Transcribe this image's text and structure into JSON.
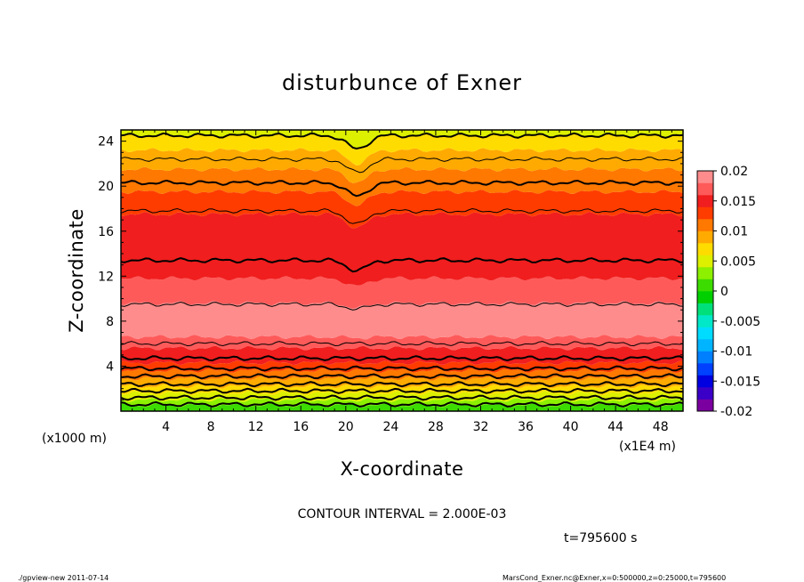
{
  "chart_data": {
    "type": "heatmap",
    "title": "disturbunce of Exner",
    "xlabel": "X-coordinate",
    "ylabel": "Z-coordinate",
    "x_unit_label": "(x1E4 m)",
    "y_unit_label": "(x1000 m)",
    "xlim": [
      0,
      50
    ],
    "ylim": [
      0,
      25
    ],
    "x_ticks": [
      4,
      8,
      12,
      16,
      20,
      24,
      28,
      32,
      36,
      40,
      44,
      48
    ],
    "y_ticks": [
      4,
      8,
      12,
      16,
      20,
      24
    ],
    "colorbar": {
      "ticks": [
        "0.02",
        "0.015",
        "0.01",
        "0.005",
        "0",
        "-0.005",
        "-0.01",
        "-0.015",
        "-0.02"
      ],
      "range": [
        -0.02,
        0.02
      ],
      "levels": [
        {
          "value": -0.019,
          "color": "#7b00a0"
        },
        {
          "value": -0.017,
          "color": "#3a00c8"
        },
        {
          "value": -0.015,
          "color": "#0000e0"
        },
        {
          "value": -0.013,
          "color": "#0040ff"
        },
        {
          "value": -0.011,
          "color": "#0080ff"
        },
        {
          "value": -0.009,
          "color": "#00b4ff"
        },
        {
          "value": -0.007,
          "color": "#00dcff"
        },
        {
          "value": -0.005,
          "color": "#00e8c8"
        },
        {
          "value": -0.003,
          "color": "#00e07a"
        },
        {
          "value": -0.001,
          "color": "#00d000"
        },
        {
          "value": 0.001,
          "color": "#3cdc00"
        },
        {
          "value": 0.003,
          "color": "#8cf000"
        },
        {
          "value": 0.005,
          "color": "#dcf000"
        },
        {
          "value": 0.007,
          "color": "#ffdc00"
        },
        {
          "value": 0.009,
          "color": "#ffaa00"
        },
        {
          "value": 0.011,
          "color": "#ff7800"
        },
        {
          "value": 0.013,
          "color": "#ff3c00"
        },
        {
          "value": 0.015,
          "color": "#f01e1e"
        },
        {
          "value": 0.017,
          "color": "#ff5a5a"
        },
        {
          "value": 0.019,
          "color": "#ff8c8c"
        }
      ]
    },
    "bands": [
      {
        "z": [
          0,
          0.5
        ],
        "value": 0.001
      },
      {
        "z": [
          0.5,
          1.0
        ],
        "value": 0.003
      },
      {
        "z": [
          1.0,
          1.6
        ],
        "value": 0.005
      },
      {
        "z": [
          1.6,
          2.2
        ],
        "value": 0.007
      },
      {
        "z": [
          2.2,
          2.9
        ],
        "value": 0.009
      },
      {
        "z": [
          2.9,
          3.6
        ],
        "value": 0.011
      },
      {
        "z": [
          3.6,
          4.3
        ],
        "value": 0.013
      },
      {
        "z": [
          4.3,
          5.6
        ],
        "value": 0.015
      },
      {
        "z": [
          5.6,
          6.6
        ],
        "value": 0.017
      },
      {
        "z": [
          6.6,
          9.6
        ],
        "value": 0.019
      },
      {
        "z": [
          9.6,
          11.8
        ],
        "value": 0.017
      },
      {
        "z": [
          11.8,
          17.5
        ],
        "value": 0.015
      },
      {
        "z": [
          17.5,
          19.5
        ],
        "value": 0.013
      },
      {
        "z": [
          19.5,
          21.5
        ],
        "value": 0.011
      },
      {
        "z": [
          21.5,
          23.2
        ],
        "value": 0.009
      },
      {
        "z": [
          23.2,
          24.5
        ],
        "value": 0.007
      },
      {
        "z": [
          24.5,
          25
        ],
        "value": 0.005
      }
    ],
    "contours": [
      {
        "z": 0.6,
        "bold": true
      },
      {
        "z": 1.2,
        "bold": true
      },
      {
        "z": 1.8,
        "bold": true
      },
      {
        "z": 2.4,
        "bold": true
      },
      {
        "z": 3.1,
        "bold": true
      },
      {
        "z": 3.8,
        "bold": true
      },
      {
        "z": 4.7,
        "bold": true
      },
      {
        "z": 6.0,
        "bold": false
      },
      {
        "z": 9.5,
        "bold": false
      },
      {
        "z": 13.4,
        "bold": true
      },
      {
        "z": 17.8,
        "bold": false
      },
      {
        "z": 20.3,
        "bold": true
      },
      {
        "z": 22.4,
        "bold": false
      },
      {
        "z": 24.5,
        "bold": true
      }
    ]
  },
  "contour_interval": "CONTOUR INTERVAL = 2.000E-03",
  "time_label": "t=795600 s",
  "footer_left": "./gpview-new   2011-07-14",
  "footer_right": "MarsCond_Exner.nc@Exner,x=0:500000,z=0:25000,t=795600"
}
